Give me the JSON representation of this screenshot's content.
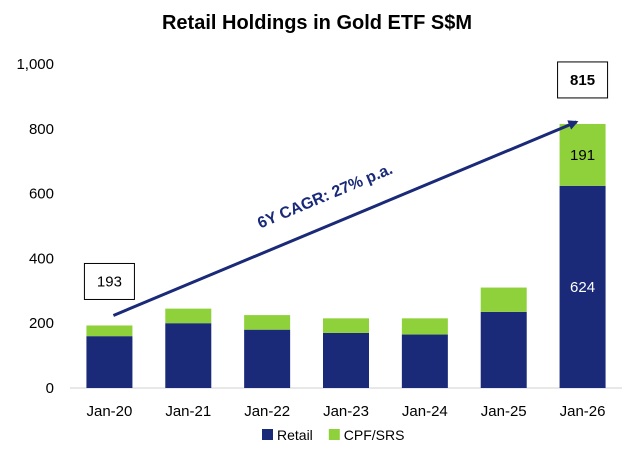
{
  "chart_data": {
    "type": "bar",
    "stacked": true,
    "title": "Retail Holdings in Gold ETF S$M",
    "xlabel": "",
    "ylabel": "",
    "ylim": [
      0,
      1000
    ],
    "yticks": [
      "0",
      "200",
      "400",
      "600",
      "800",
      "1,000"
    ],
    "ytick_values": [
      0,
      200,
      400,
      600,
      800,
      1000
    ],
    "categories": [
      "Jan-20",
      "Jan-21",
      "Jan-22",
      "Jan-23",
      "Jan-24",
      "Jan-25",
      "Jan-26"
    ],
    "series": [
      {
        "name": "Retail",
        "color": "#1a2a78",
        "values": [
          160,
          200,
          180,
          170,
          165,
          235,
          624
        ]
      },
      {
        "name": "CPF/SRS",
        "color": "#8fd13a",
        "values": [
          33,
          45,
          45,
          45,
          50,
          75,
          191
        ]
      }
    ],
    "segment_labels": {
      "Retail": {
        "Jan-26": "624"
      },
      "CPF/SRS": {
        "Jan-26": "191"
      }
    },
    "callouts": [
      {
        "category": "Jan-20",
        "text": "193",
        "bold": false
      },
      {
        "category": "Jan-26",
        "text": "815",
        "bold": true
      }
    ],
    "annotation": {
      "text": "6Y CAGR: 27% p.a.",
      "from": "Jan-20",
      "to": "Jan-26",
      "color": "#1a2a78"
    },
    "legend": {
      "position": "bottom",
      "entries": [
        "Retail",
        "CPF/SRS"
      ]
    },
    "grid": false
  }
}
